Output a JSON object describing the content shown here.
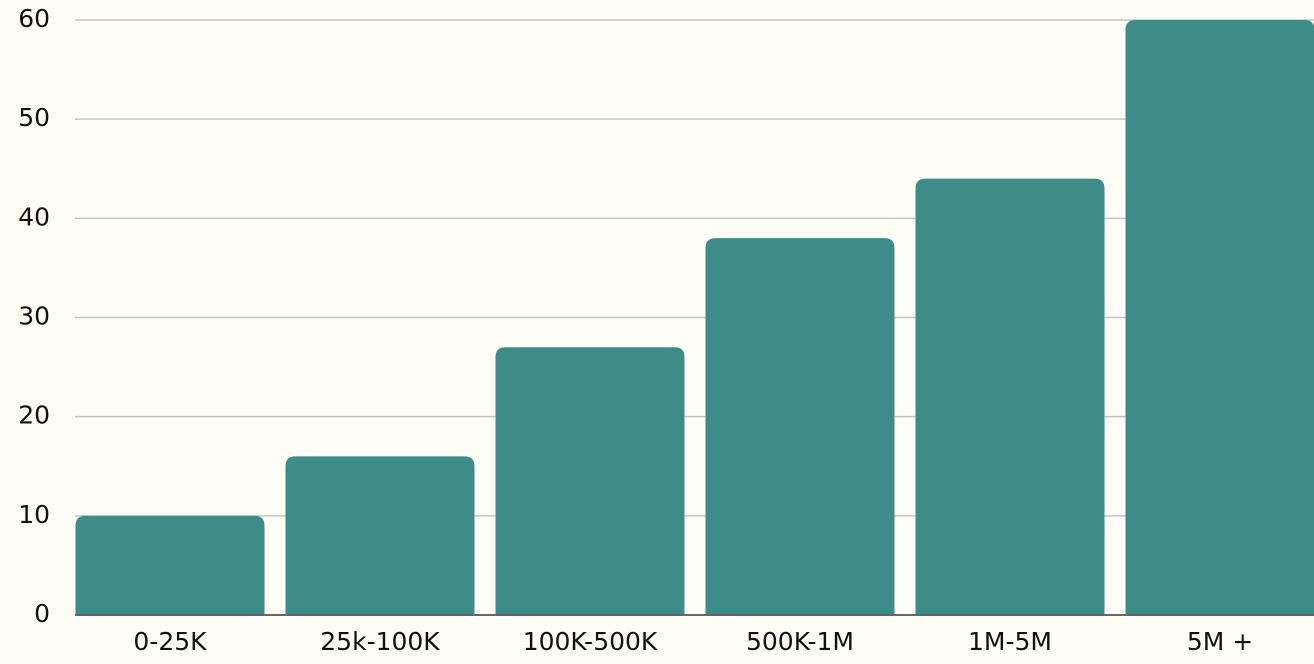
{
  "chart_data": {
    "type": "bar",
    "categories": [
      "0-25K",
      "25k-100K",
      "100K-500K",
      "500K-1M",
      "1M-5M",
      "5M +"
    ],
    "values": [
      10,
      16,
      27,
      38,
      44,
      60
    ],
    "color": "#3d8c89",
    "ylim": [
      0,
      60
    ],
    "yticks": [
      0,
      10,
      20,
      30,
      40,
      50,
      60
    ],
    "grid": true
  }
}
